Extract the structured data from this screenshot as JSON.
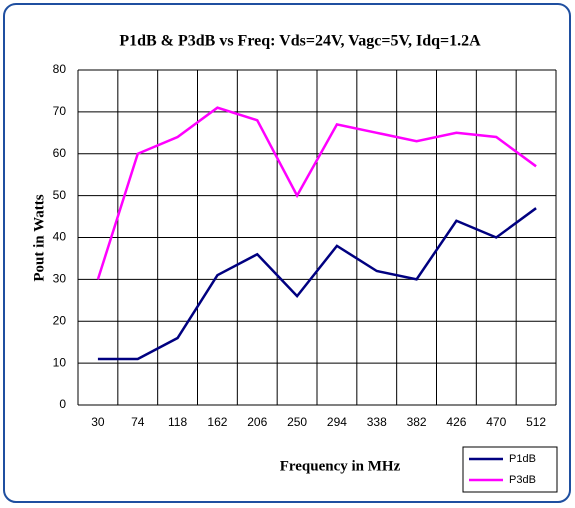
{
  "chart_data": {
    "type": "line",
    "title": "P1dB & P3dB vs Freq: Vds=24V, Vagc=5V, Idq=1.2A",
    "xlabel": "Frequency in MHz",
    "ylabel": "Pout in Watts",
    "categories": [
      "30",
      "74",
      "118",
      "162",
      "206",
      "250",
      "294",
      "338",
      "382",
      "426",
      "470",
      "512"
    ],
    "series": [
      {
        "name": "P1dB",
        "color": "#000080",
        "values": [
          11,
          11,
          16,
          31,
          36,
          26,
          38,
          32,
          30,
          44,
          40,
          47
        ]
      },
      {
        "name": "P3dB",
        "color": "#ff00ff",
        "values": [
          30,
          60,
          64,
          71,
          68,
          50,
          67,
          65,
          63,
          65,
          64,
          57
        ]
      }
    ],
    "ylim": [
      0,
      80
    ],
    "yticks": [
      0,
      10,
      20,
      30,
      40,
      50,
      60,
      70,
      80
    ],
    "grid": true,
    "legend": "bottom-right"
  }
}
